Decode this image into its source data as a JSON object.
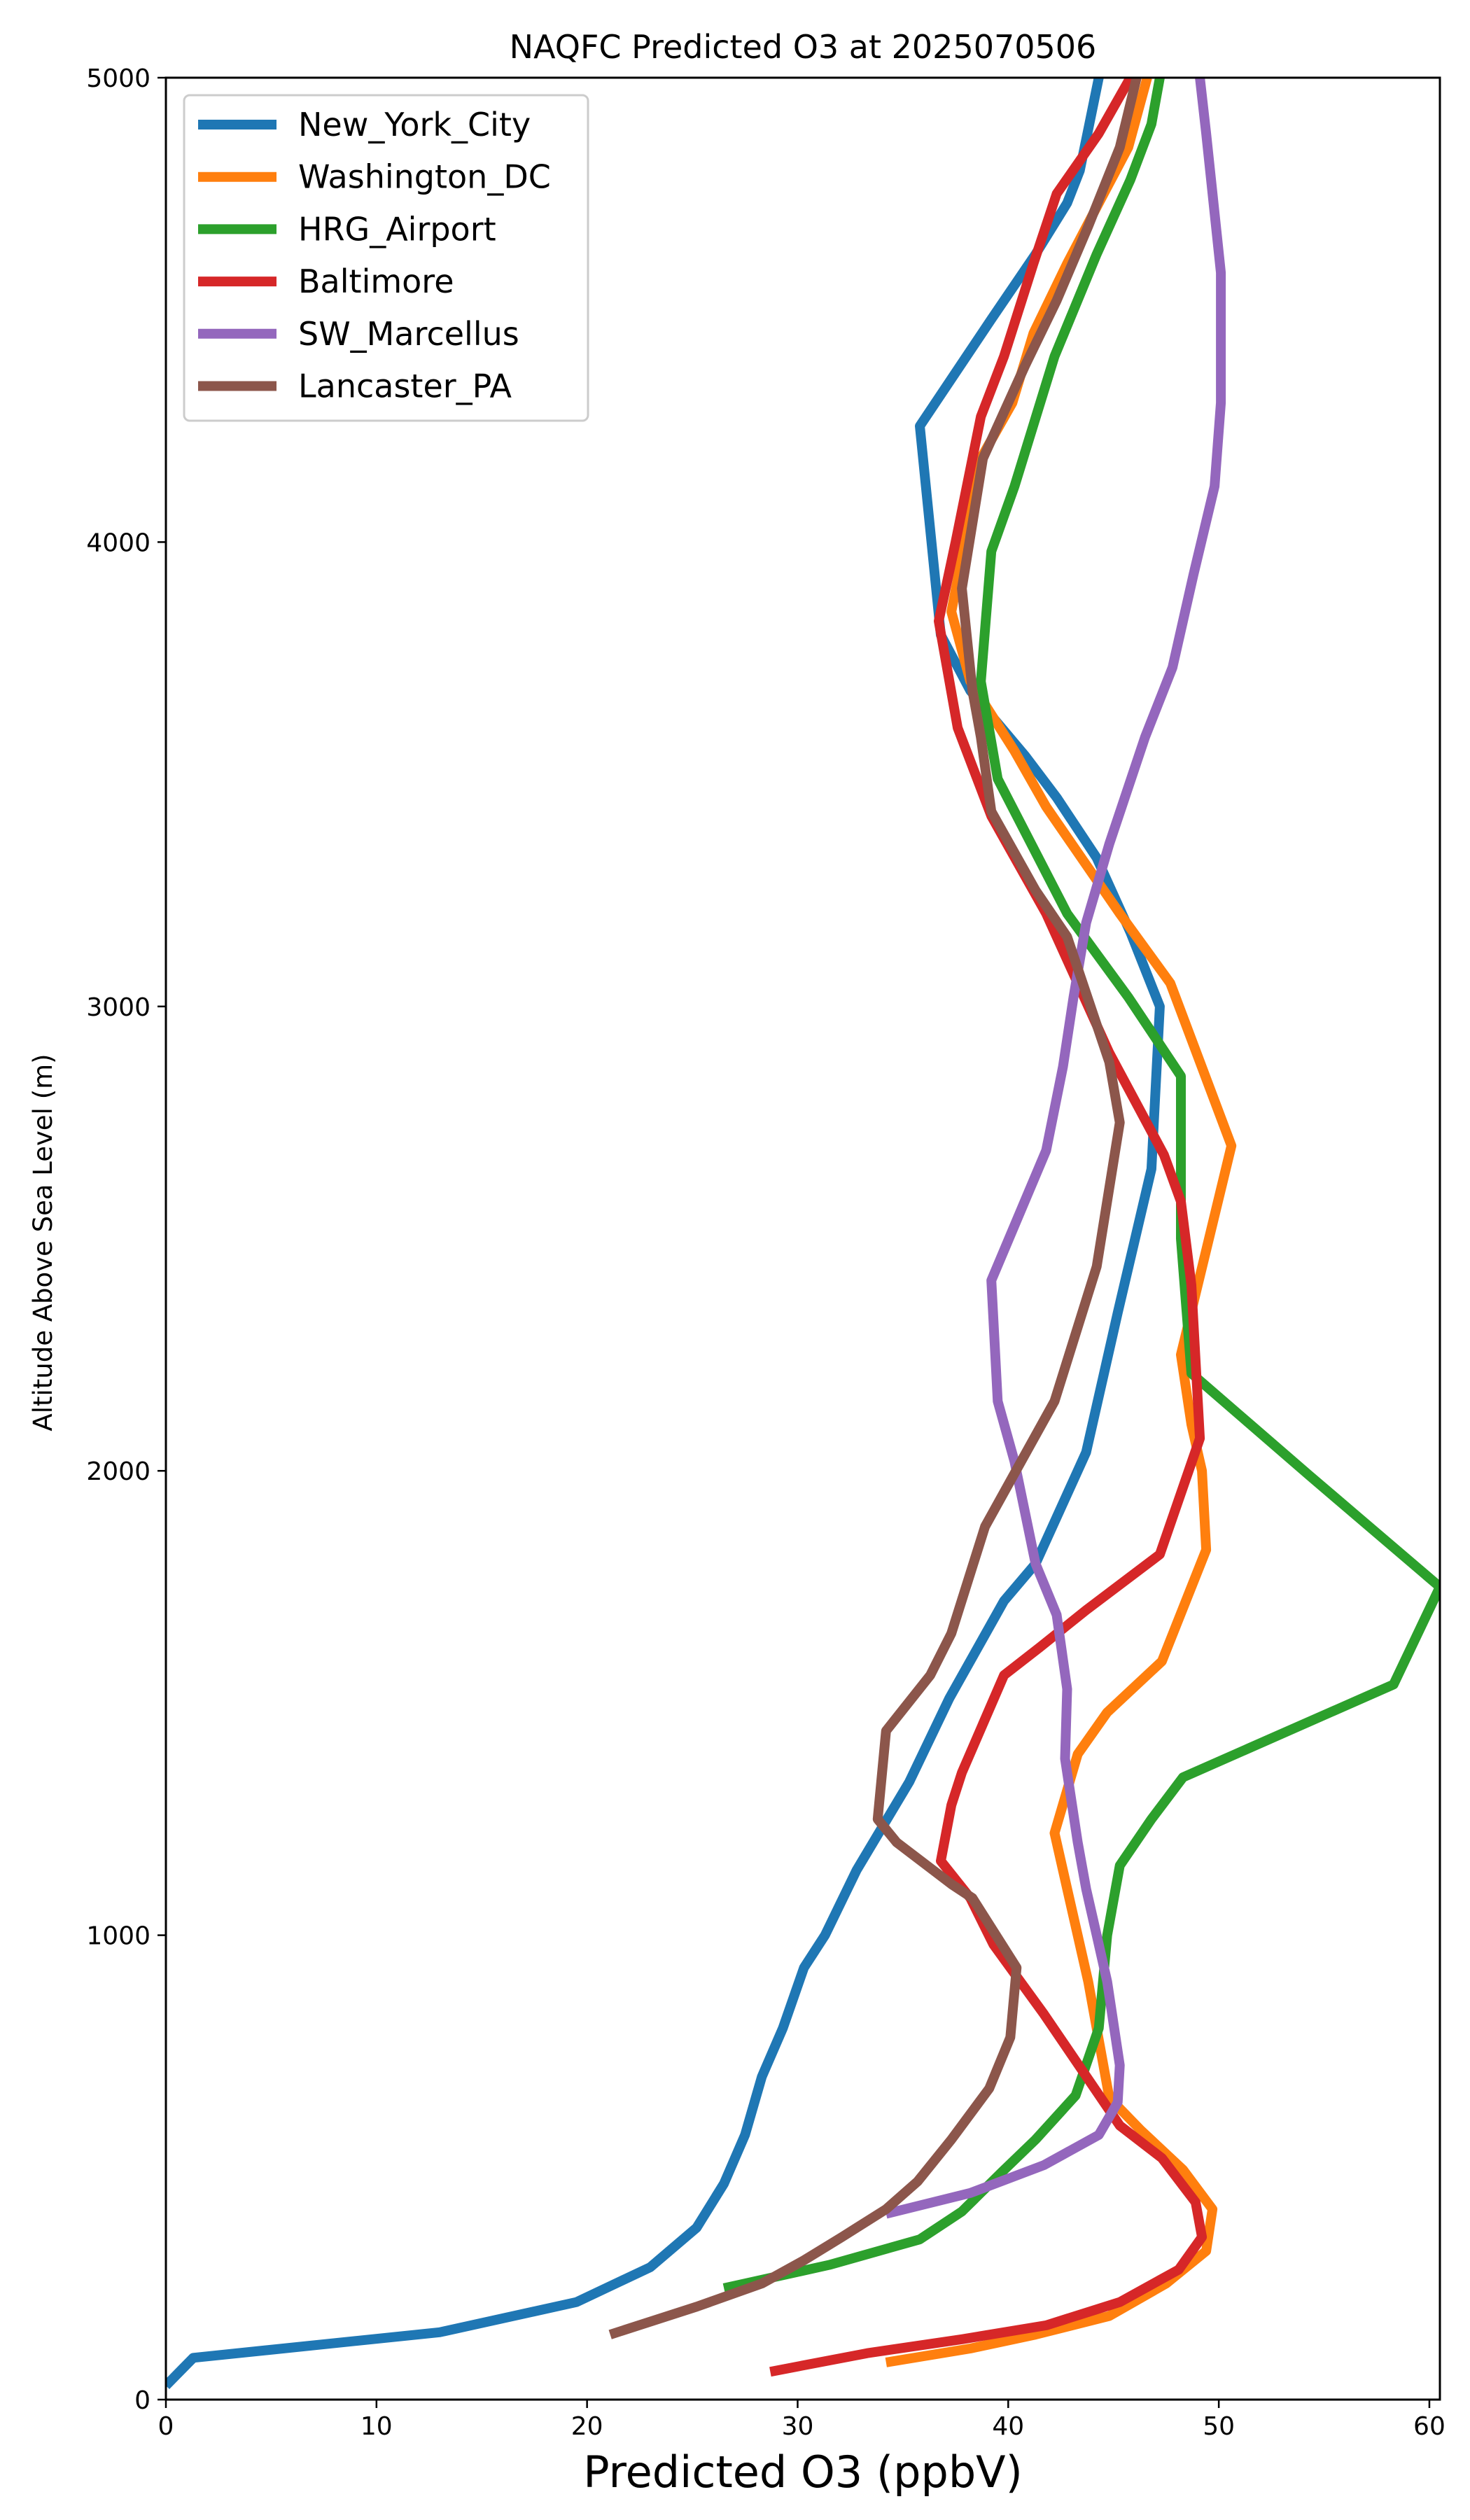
{
  "chart_data": {
    "type": "line",
    "title": "NAQFC Predicted O3 at 2025070506",
    "xlabel": "Predicted O3 (ppbV)",
    "ylabel": "Altitude Above Sea Level (m)",
    "xlim": [
      0,
      60.5
    ],
    "ylim": [
      0,
      5000
    ],
    "xticks": [
      0,
      10,
      20,
      30,
      40,
      50,
      60
    ],
    "yticks": [
      0,
      1000,
      2000,
      3000,
      4000,
      5000
    ],
    "legend_position": "top-left",
    "grid": false,
    "series": [
      {
        "name": "New_York_City",
        "color": "#1f77b4",
        "points": [
          [
            0,
            30
          ],
          [
            1.3,
            90
          ],
          [
            13,
            145
          ],
          [
            19.5,
            210
          ],
          [
            23,
            285
          ],
          [
            25.2,
            370
          ],
          [
            26.5,
            465
          ],
          [
            27.5,
            570
          ],
          [
            28.3,
            695
          ],
          [
            29.3,
            800
          ],
          [
            30.3,
            930
          ],
          [
            31.3,
            1000
          ],
          [
            32.8,
            1140
          ],
          [
            35.3,
            1330
          ],
          [
            37.2,
            1510
          ],
          [
            39.8,
            1720
          ],
          [
            41.3,
            1800
          ],
          [
            43.7,
            2040
          ],
          [
            45.2,
            2340
          ],
          [
            46.8,
            2650
          ],
          [
            47.2,
            3000
          ],
          [
            45.8,
            3160
          ],
          [
            44.2,
            3320
          ],
          [
            42.3,
            3450
          ],
          [
            40.8,
            3540
          ],
          [
            38.2,
            3680
          ],
          [
            36.8,
            3800
          ],
          [
            35.8,
            4250
          ],
          [
            39.2,
            4480
          ],
          [
            41.3,
            4620
          ],
          [
            42.8,
            4730
          ],
          [
            43.4,
            4800
          ],
          [
            44.3,
            5000
          ]
        ]
      },
      {
        "name": "Washington_DC",
        "color": "#ff7f0e",
        "points": [
          [
            34.2,
            80
          ],
          [
            38.2,
            110
          ],
          [
            41.3,
            140
          ],
          [
            44.8,
            180
          ],
          [
            47.5,
            250
          ],
          [
            49.4,
            320
          ],
          [
            49.7,
            410
          ],
          [
            48.3,
            495
          ],
          [
            46.3,
            580
          ],
          [
            44.8,
            650
          ],
          [
            43.8,
            900
          ],
          [
            42.8,
            1100
          ],
          [
            42.2,
            1220
          ],
          [
            43.3,
            1390
          ],
          [
            44.7,
            1480
          ],
          [
            47.3,
            1590
          ],
          [
            49.4,
            1830
          ],
          [
            49.2,
            2000
          ],
          [
            48.7,
            2100
          ],
          [
            48.2,
            2250
          ],
          [
            50.6,
            2700
          ],
          [
            47.7,
            3050
          ],
          [
            45.3,
            3200
          ],
          [
            41.8,
            3430
          ],
          [
            40.3,
            3550
          ],
          [
            38.2,
            3700
          ],
          [
            37.3,
            3850
          ],
          [
            38.7,
            4180
          ],
          [
            40.2,
            4300
          ],
          [
            41.2,
            4450
          ],
          [
            42.8,
            4600
          ],
          [
            44.3,
            4730
          ],
          [
            45.7,
            4850
          ],
          [
            46.6,
            5000
          ]
        ]
      },
      {
        "name": "HRG_Airport",
        "color": "#2ca02c",
        "points": [
          [
            26.5,
            240
          ],
          [
            31.5,
            290
          ],
          [
            35.8,
            345
          ],
          [
            37.8,
            405
          ],
          [
            39.7,
            490
          ],
          [
            41.3,
            560
          ],
          [
            43.2,
            655
          ],
          [
            44.3,
            800
          ],
          [
            44.7,
            1000
          ],
          [
            45.3,
            1150
          ],
          [
            46.8,
            1250
          ],
          [
            48.3,
            1340
          ],
          [
            58.3,
            1540
          ],
          [
            60.5,
            1750
          ],
          [
            54.3,
            1990
          ],
          [
            48.7,
            2210
          ],
          [
            48.2,
            2500
          ],
          [
            48.2,
            2850
          ],
          [
            45.7,
            3020
          ],
          [
            42.8,
            3200
          ],
          [
            39.5,
            3490
          ],
          [
            38.7,
            3700
          ],
          [
            39.2,
            3980
          ],
          [
            40.3,
            4120
          ],
          [
            42.2,
            4400
          ],
          [
            44.2,
            4620
          ],
          [
            45.8,
            4780
          ],
          [
            46.8,
            4900
          ],
          [
            47.2,
            5000
          ]
        ]
      },
      {
        "name": "Baltimore",
        "color": "#d62728",
        "points": [
          [
            28.7,
            60
          ],
          [
            33.3,
            100
          ],
          [
            37.8,
            130
          ],
          [
            41.8,
            160
          ],
          [
            45.3,
            210
          ],
          [
            48.1,
            280
          ],
          [
            49.2,
            350
          ],
          [
            48.9,
            425
          ],
          [
            47.3,
            520
          ],
          [
            45.3,
            590
          ],
          [
            41.7,
            830
          ],
          [
            39.3,
            980
          ],
          [
            38.2,
            1080
          ],
          [
            36.8,
            1160
          ],
          [
            37.3,
            1280
          ],
          [
            37.8,
            1350
          ],
          [
            39.8,
            1560
          ],
          [
            41.5,
            1620
          ],
          [
            43.7,
            1700
          ],
          [
            47.2,
            1820
          ],
          [
            49.1,
            2070
          ],
          [
            48.7,
            2400
          ],
          [
            48.2,
            2580
          ],
          [
            47.4,
            2680
          ],
          [
            44.8,
            2900
          ],
          [
            43.3,
            3050
          ],
          [
            41.8,
            3200
          ],
          [
            39.2,
            3410
          ],
          [
            37.6,
            3600
          ],
          [
            36.7,
            3830
          ],
          [
            37.5,
            4000
          ],
          [
            38.7,
            4270
          ],
          [
            39.8,
            4400
          ],
          [
            41.2,
            4600
          ],
          [
            42.3,
            4750
          ],
          [
            44.3,
            4880
          ],
          [
            45.8,
            5000
          ]
        ]
      },
      {
        "name": "SW_Marcellus",
        "color": "#9467bd",
        "points": [
          [
            34.2,
            400
          ],
          [
            38.2,
            445
          ],
          [
            41.7,
            505
          ],
          [
            44.3,
            570
          ],
          [
            45.2,
            640
          ],
          [
            45.3,
            720
          ],
          [
            44.7,
            900
          ],
          [
            44.2,
            1000
          ],
          [
            43.7,
            1100
          ],
          [
            43.3,
            1200
          ],
          [
            42.7,
            1380
          ],
          [
            42.8,
            1530
          ],
          [
            42.3,
            1690
          ],
          [
            41.3,
            1800
          ],
          [
            40.3,
            2020
          ],
          [
            39.5,
            2150
          ],
          [
            39.2,
            2410
          ],
          [
            41.8,
            2690
          ],
          [
            42.6,
            2870
          ],
          [
            43.1,
            3020
          ],
          [
            43.7,
            3180
          ],
          [
            44.8,
            3350
          ],
          [
            46.5,
            3580
          ],
          [
            47.8,
            3730
          ],
          [
            48.8,
            3930
          ],
          [
            49.8,
            4120
          ],
          [
            50.1,
            4300
          ],
          [
            50.1,
            4580
          ],
          [
            49.4,
            4880
          ],
          [
            49.1,
            5000
          ]
        ]
      },
      {
        "name": "Lancaster_PA",
        "color": "#8c564b",
        "points": [
          [
            21.1,
            140
          ],
          [
            25.2,
            200
          ],
          [
            28.3,
            250
          ],
          [
            30.3,
            300
          ],
          [
            32.1,
            350
          ],
          [
            34.2,
            410
          ],
          [
            35.7,
            470
          ],
          [
            37.3,
            560
          ],
          [
            39.1,
            670
          ],
          [
            40.1,
            780
          ],
          [
            40.4,
            930
          ],
          [
            38.3,
            1080
          ],
          [
            37.3,
            1110
          ],
          [
            34.7,
            1200
          ],
          [
            33.8,
            1250
          ],
          [
            34.2,
            1440
          ],
          [
            36.3,
            1560
          ],
          [
            37.3,
            1650
          ],
          [
            38.9,
            1880
          ],
          [
            42.2,
            2150
          ],
          [
            44.2,
            2440
          ],
          [
            45.3,
            2750
          ],
          [
            44.8,
            2880
          ],
          [
            42.8,
            3150
          ],
          [
            41.3,
            3250
          ],
          [
            39.2,
            3420
          ],
          [
            38.7,
            3580
          ],
          [
            38.3,
            3680
          ],
          [
            37.8,
            3900
          ],
          [
            38.8,
            4180
          ],
          [
            40.8,
            4380
          ],
          [
            42.3,
            4520
          ],
          [
            43.8,
            4680
          ],
          [
            45.3,
            4850
          ],
          [
            46.1,
            5000
          ]
        ]
      }
    ]
  }
}
